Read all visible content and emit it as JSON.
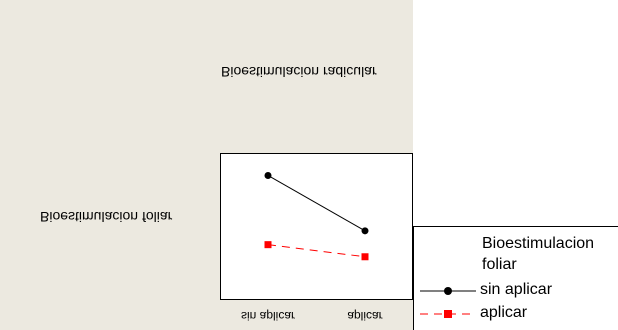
{
  "chart_data": {
    "type": "line",
    "categories": [
      "sin aplicar",
      "aplicar"
    ],
    "xlabel": "Bioestimulacion radicular",
    "ylabel": "Bioestimulacion foliar",
    "series": [
      {
        "name": "sin aplicar",
        "values": [
          4.2,
          1.0
        ],
        "color": "#000000",
        "marker": "circle",
        "line": "solid"
      },
      {
        "name": "aplicar",
        "values": [
          0.2,
          -0.5
        ],
        "color": "#ff0000",
        "marker": "square",
        "line": "dashed"
      }
    ],
    "ylim": [
      -3,
      5.5
    ],
    "legend": {
      "title": "Bioestimulacion foliar",
      "position": "bottom-right"
    }
  }
}
